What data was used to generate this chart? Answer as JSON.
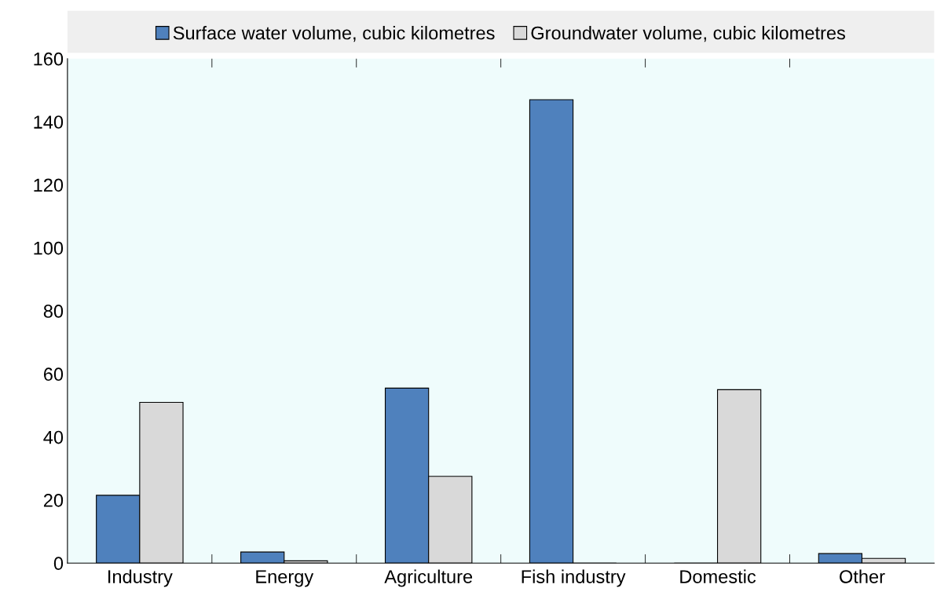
{
  "chart_data": {
    "type": "bar",
    "categories": [
      "Industry",
      "Energy",
      "Agriculture",
      "Fish industry",
      "Domestic",
      "Other"
    ],
    "series": [
      {
        "name": "Surface water volume, cubic kilometres",
        "color": "#4f81bd",
        "values": [
          21.5,
          3.5,
          55.5,
          147,
          0,
          3
        ]
      },
      {
        "name": "Groundwater volume, cubic kilometres",
        "color": "#d9d9d9",
        "values": [
          51,
          0.7,
          27.5,
          0,
          55,
          1.5
        ]
      }
    ],
    "ylim": [
      0,
      160
    ],
    "yticks": [
      0,
      20,
      40,
      60,
      80,
      100,
      120,
      140,
      160
    ],
    "grid": false,
    "legend": "top"
  }
}
